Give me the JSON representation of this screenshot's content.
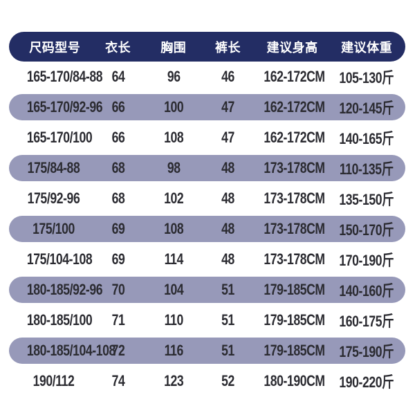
{
  "table": {
    "header": {
      "labels": [
        "尺码型号",
        "衣长",
        "胸围",
        "裤长",
        "建议身高",
        "建议体重"
      ]
    },
    "rows": [
      {
        "highlight": false,
        "cells": [
          "165-170/84-88",
          "64",
          "96",
          "46",
          "162-172CM",
          "105-130斤"
        ]
      },
      {
        "highlight": true,
        "cells": [
          "165-170/92-96",
          "66",
          "100",
          "47",
          "162-172CM",
          "120-145斤"
        ]
      },
      {
        "highlight": false,
        "cells": [
          "165-170/100",
          "66",
          "108",
          "47",
          "162-172CM",
          "140-165斤"
        ]
      },
      {
        "highlight": true,
        "cells": [
          "175/84-88",
          "68",
          "98",
          "48",
          "173-178CM",
          "110-135斤"
        ]
      },
      {
        "highlight": false,
        "cells": [
          "175/92-96",
          "68",
          "102",
          "48",
          "173-178CM",
          "135-150斤"
        ]
      },
      {
        "highlight": true,
        "cells": [
          "175/100",
          "69",
          "108",
          "48",
          "173-178CM",
          "150-170斤"
        ]
      },
      {
        "highlight": false,
        "cells": [
          "175/104-108",
          "69",
          "114",
          "48",
          "173-178CM",
          "170-190斤"
        ]
      },
      {
        "highlight": true,
        "cells": [
          "180-185/92-96",
          "70",
          "104",
          "51",
          "179-185CM",
          "140-160斤"
        ]
      },
      {
        "highlight": false,
        "cells": [
          "180-185/100",
          "71",
          "110",
          "51",
          "179-185CM",
          "160-175斤"
        ]
      },
      {
        "highlight": true,
        "cells": [
          "180-185/104-108",
          "72",
          "116",
          "51",
          "179-185CM",
          "175-190斤"
        ]
      },
      {
        "highlight": false,
        "cells": [
          "190/112",
          "74",
          "123",
          "52",
          "180-190CM",
          "190-220斤"
        ]
      }
    ]
  },
  "colors": {
    "page_bg": "#ffffff",
    "header_bg": "#232d64",
    "header_text": "#ffffff",
    "highlight_row_bg": "#9799b9",
    "cell_text": "#2b2b31"
  }
}
